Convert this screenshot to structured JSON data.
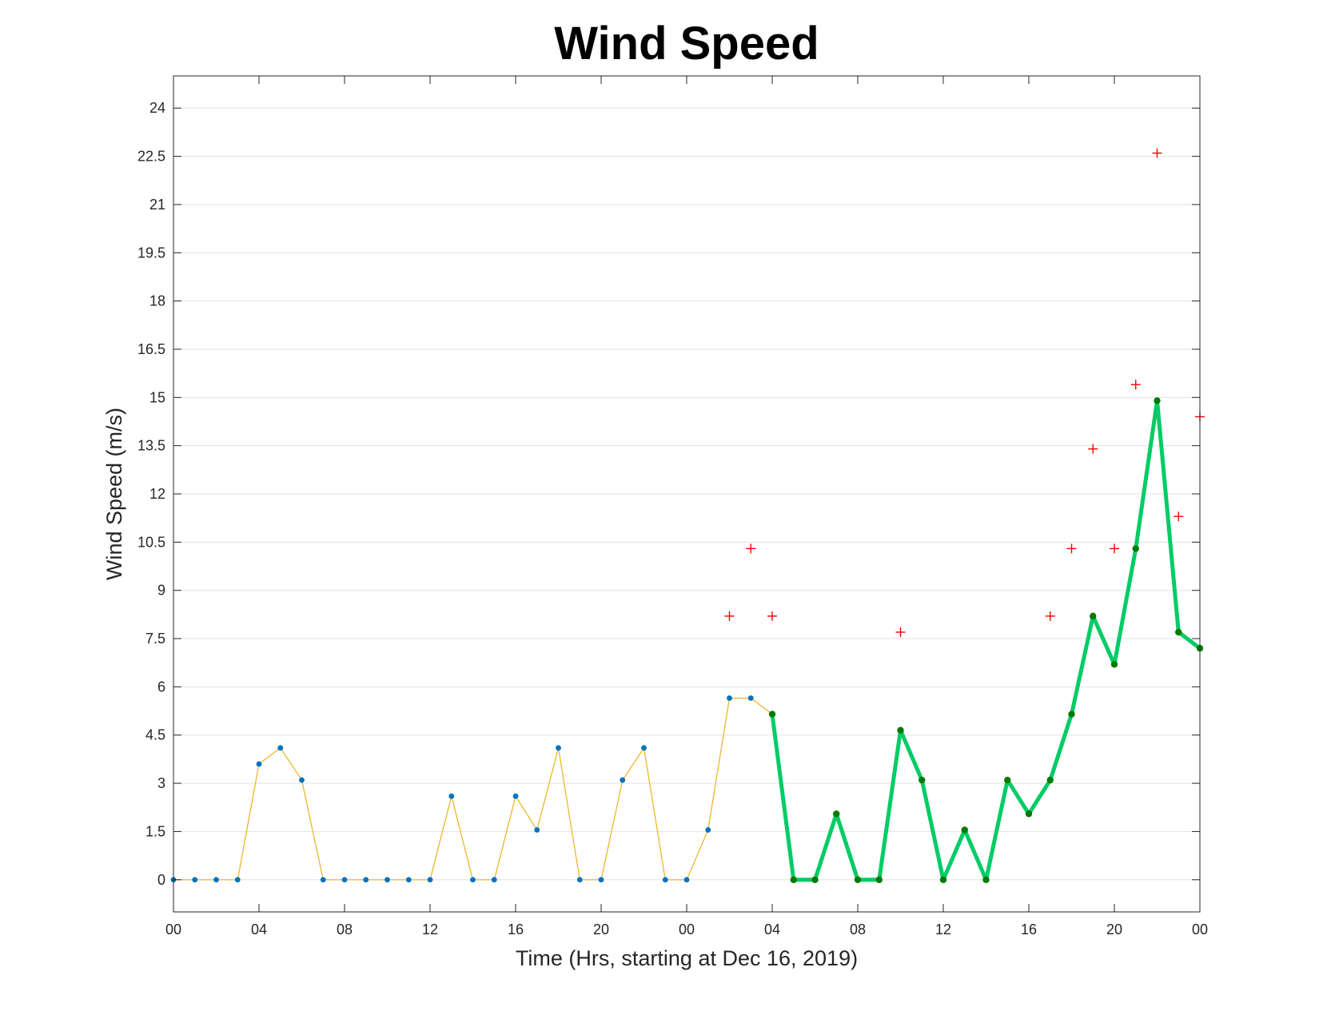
{
  "chart_data": {
    "type": "line",
    "title": "Wind Speed",
    "xlabel": "Time (Hrs, starting at Dec 16, 2019)",
    "ylabel": "Wind Speed (m/s)",
    "x_range_hours": [
      0,
      48
    ],
    "ylim": [
      -1.0,
      25.0
    ],
    "y_ticks": [
      0,
      1.5,
      3,
      4.5,
      6,
      7.5,
      9,
      10.5,
      12,
      13.5,
      15,
      16.5,
      18,
      19.5,
      21,
      22.5,
      24
    ],
    "y_tick_labels": [
      "0",
      "1.5",
      "3",
      "4.5",
      "6",
      "7.5",
      "9",
      "10.5",
      "12",
      "13.5",
      "15",
      "16.5",
      "18",
      "19.5",
      "21",
      "22.5",
      "24"
    ],
    "x_ticks_hours": [
      0,
      4,
      8,
      12,
      16,
      20,
      24,
      28,
      32,
      36,
      40,
      44,
      48
    ],
    "x_tick_labels": [
      "00",
      "04",
      "08",
      "12",
      "16",
      "20",
      "00",
      "04",
      "08",
      "12",
      "16",
      "20",
      "00"
    ],
    "grid": "horizontal",
    "series": [
      {
        "style": "thin-line-with-markers",
        "color": "#EDB120",
        "marker_color": "#0072BD",
        "x": [
          0,
          1,
          2,
          3,
          4,
          5,
          6,
          7,
          8,
          9,
          10,
          11,
          12,
          13,
          14,
          15,
          16,
          17,
          18,
          19,
          20,
          21,
          22,
          23,
          24,
          25,
          26,
          27,
          28
        ],
        "values": [
          0,
          0,
          0,
          0,
          3.6,
          4.1,
          3.1,
          0,
          0,
          0,
          0,
          0,
          0,
          2.6,
          0,
          0,
          2.6,
          1.55,
          4.1,
          0,
          0,
          3.1,
          4.1,
          0,
          0,
          1.55,
          5.65,
          5.65,
          5.15
        ]
      },
      {
        "style": "thick-line-with-markers",
        "color": "#00CC66",
        "marker_color": "#007A00",
        "x": [
          28,
          29,
          30,
          31,
          32,
          33,
          34,
          35,
          36,
          37,
          38,
          39,
          40,
          41,
          42,
          43,
          44,
          45,
          46,
          47,
          48
        ],
        "values": [
          5.15,
          0,
          0,
          2.05,
          0,
          0,
          4.65,
          3.1,
          0,
          1.55,
          0,
          3.1,
          2.05,
          3.1,
          5.15,
          8.2,
          6.7,
          10.3,
          14.9,
          7.7,
          7.2
        ]
      },
      {
        "style": "plus-markers",
        "color": "#FF0000",
        "x": [
          26,
          27,
          28,
          34,
          41,
          42,
          43,
          44,
          45,
          46,
          47,
          48
        ],
        "values": [
          8.2,
          10.3,
          8.2,
          7.7,
          8.2,
          10.3,
          13.4,
          10.3,
          15.4,
          22.6,
          11.3,
          14.4
        ]
      }
    ]
  }
}
